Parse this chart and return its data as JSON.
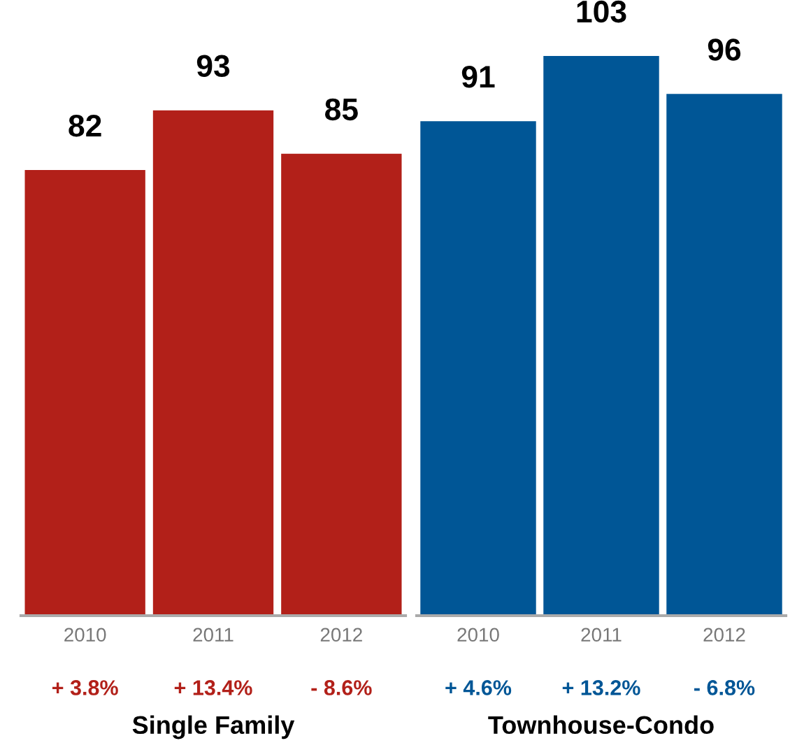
{
  "chart_data": [
    {
      "type": "bar",
      "xlabel": "Single Family",
      "categories": [
        "2010",
        "2011",
        "2012"
      ],
      "values": [
        82,
        93,
        85
      ],
      "color": "#b22019",
      "data_labels": true,
      "tick_labels": "x",
      "grid": false,
      "legend": false,
      "annotations": [
        "+ 3.8%",
        "+ 13.4%",
        "- 8.6%"
      ]
    },
    {
      "type": "bar",
      "xlabel": "Townhouse-Condo",
      "categories": [
        "2010",
        "2011",
        "2012"
      ],
      "values": [
        91,
        103,
        96
      ],
      "color": "#005696",
      "data_labels": true,
      "tick_labels": "x",
      "grid": false,
      "legend": false,
      "annotations": [
        "+ 4.6%",
        "+ 13.2%",
        "- 6.8%"
      ]
    }
  ]
}
